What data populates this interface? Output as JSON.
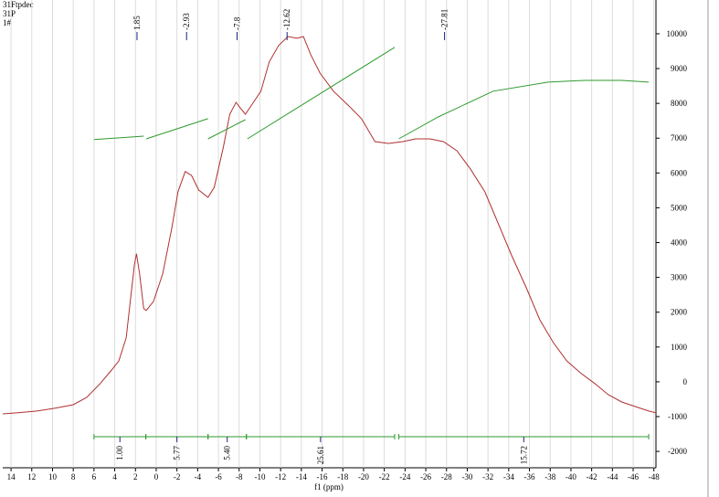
{
  "chart_data": {
    "type": "line",
    "annotations": [
      "31Ftpdec",
      "31P",
      "1#"
    ],
    "xlabel": "f1 (ppm)",
    "xlim": [
      14.8,
      -48.2
    ],
    "ylim": [
      -2470,
      10970
    ],
    "xticks": [
      14,
      12,
      10,
      8,
      6,
      4,
      2,
      0,
      -2,
      -4,
      -6,
      -8,
      -10,
      -12,
      -14,
      -16,
      -18,
      -20,
      -22,
      -24,
      -26,
      -28,
      -30,
      -32,
      -34,
      -36,
      -38,
      -40,
      -42,
      -44,
      -46,
      -48
    ],
    "yticks": [
      -2000,
      -1000,
      0,
      1000,
      2000,
      3000,
      4000,
      5000,
      6000,
      7000,
      8000,
      9000,
      10000
    ],
    "grid": "x",
    "series": [
      {
        "color": "#b03030",
        "x": [
          14.8,
          13.3,
          11.5,
          9.8,
          8.0,
          6.7,
          5.4,
          4.3,
          3.6,
          2.9,
          2.5,
          2.1,
          1.9,
          1.6,
          1.2,
          0.96,
          0.26,
          -0.63,
          -1.5,
          -2.1,
          -2.8,
          -3.4,
          -4.1,
          -5.0,
          -5.6,
          -6.5,
          -7.1,
          -7.7,
          -8.1,
          -8.6,
          -9.2,
          -10.1,
          -10.9,
          -11.8,
          -12.7,
          -13.6,
          -14.2,
          -14.9,
          -15.8,
          -17.1,
          -18.5,
          -19.8,
          -21.1,
          -22.4,
          -23.8,
          -25.0,
          -26.4,
          -27.7,
          -29.0,
          -30.3,
          -31.7,
          -33.0,
          -34.3,
          -35.7,
          -37.0,
          -38.3,
          -39.6,
          -40.9,
          -42.3,
          -43.6,
          -44.9,
          -46.2,
          -47.5,
          -48.2
        ],
        "values": [
          -920,
          -890,
          -840,
          -760,
          -660,
          -450,
          -50,
          340,
          600,
          1260,
          2310,
          3360,
          3680,
          3100,
          2100,
          2050,
          2310,
          3100,
          4410,
          5460,
          6040,
          5930,
          5510,
          5300,
          5590,
          6770,
          7690,
          8030,
          7870,
          7690,
          7950,
          8350,
          9190,
          9660,
          9920,
          9870,
          9920,
          9400,
          8870,
          8350,
          7950,
          7560,
          6900,
          6850,
          6900,
          6980,
          6980,
          6900,
          6640,
          6120,
          5460,
          4540,
          3620,
          2700,
          1780,
          1130,
          600,
          260,
          -50,
          -370,
          -580,
          -710,
          -840,
          -890
        ]
      },
      {
        "color": "#2e9a2e",
        "x": [
          6.0,
          1.2
        ],
        "values": [
          6960,
          7060
        ]
      },
      {
        "color": "#2e9a2e",
        "x": [
          0.96,
          -5.0
        ],
        "values": [
          6980,
          7560
        ]
      },
      {
        "color": "#2e9a2e",
        "x": [
          -5.0,
          -8.6
        ],
        "values": [
          6980,
          7530
        ]
      },
      {
        "color": "#2e9a2e",
        "x": [
          -8.8,
          -23.0
        ],
        "values": [
          6980,
          9610
        ]
      },
      {
        "color": "#2e9a2e",
        "x": [
          -23.4,
          -27.2,
          -32.5,
          -37.8,
          -41.3,
          -44.9,
          -47.5
        ],
        "values": [
          6980,
          7610,
          8350,
          8610,
          8660,
          8660,
          8610
        ]
      }
    ],
    "peaks": [
      1.85,
      -2.93,
      -7.8,
      -12.62,
      -27.81
    ],
    "integrals": {
      "regions": [
        [
          6.0,
          1.0
        ],
        [
          1.0,
          -5.0
        ],
        [
          -5.0,
          -8.7
        ],
        [
          -8.7,
          -23.0
        ],
        [
          -23.4,
          -47.5
        ]
      ],
      "values": [
        1.0,
        5.77,
        5.4,
        25.61,
        15.72
      ],
      "value_labels": [
        "1.00",
        "5.77",
        "5.40",
        "25.61",
        "15.72"
      ]
    }
  }
}
